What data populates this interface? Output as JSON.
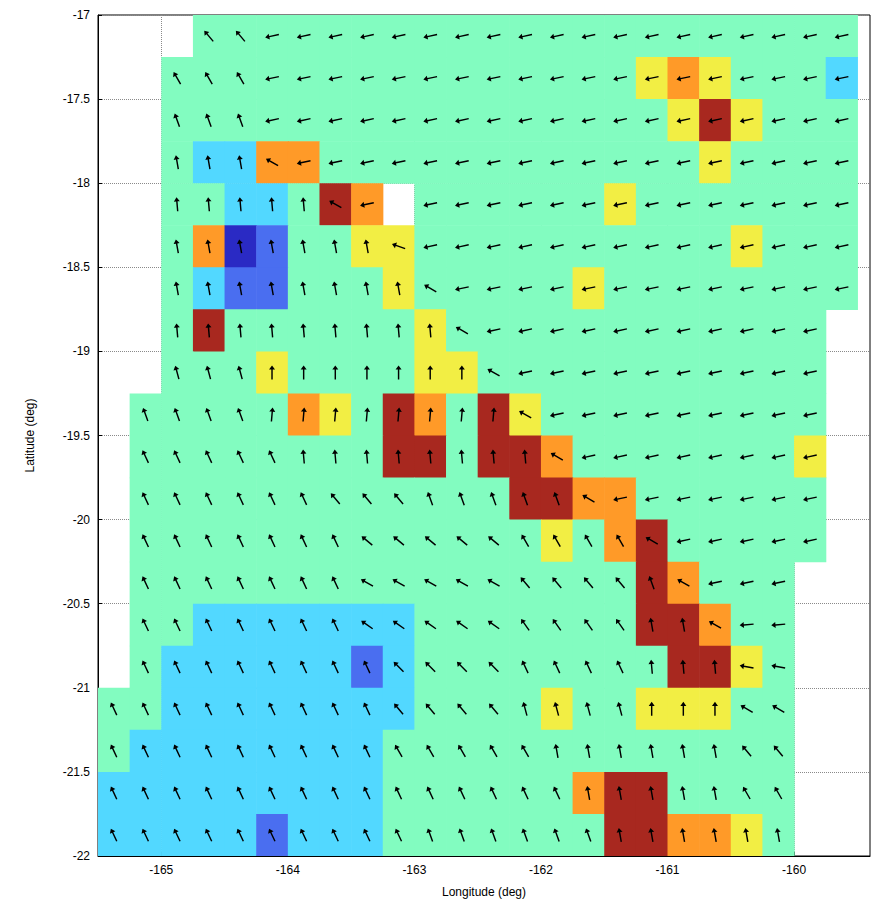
{
  "chart_data": {
    "type": "heatmap",
    "xlabel": "Longitude (deg)",
    "ylabel": "Latitude (deg)",
    "xlim": [
      -165.5,
      -159.4
    ],
    "ylim": [
      -22,
      -17
    ],
    "xticks": [
      -165,
      -164,
      -163,
      -162,
      -161,
      -160
    ],
    "yticks": [
      -22,
      -21.5,
      -21,
      -20.5,
      -20,
      -19.5,
      -19,
      -18.5,
      -18,
      -17.5,
      -17
    ],
    "grid": true,
    "lon": [
      -165.375,
      -165.125,
      -164.875,
      -164.625,
      -164.375,
      -164.125,
      -163.875,
      -163.625,
      -163.375,
      -163.125,
      -162.875,
      -162.625,
      -162.375,
      -162.125,
      -161.875,
      -161.625,
      -161.375,
      -161.125,
      -160.875,
      -160.625,
      -160.375,
      -160.125,
      -159.875,
      -159.625
    ],
    "lat": [
      -17.125,
      -17.375,
      -17.625,
      -17.875,
      -18.125,
      -18.375,
      -18.625,
      -18.875,
      -19.125,
      -19.375,
      -19.625,
      -19.875,
      -20.125,
      -20.375,
      -20.625,
      -20.875,
      -21.125,
      -21.375,
      -21.625,
      -21.875
    ],
    "color_range": [
      -3,
      3
    ],
    "cells": [
      [
        null,
        null,
        null,
        0,
        0,
        0,
        0,
        0,
        0,
        0,
        0,
        0,
        0,
        0,
        0,
        0,
        0,
        0,
        0,
        0,
        0,
        0,
        0,
        0
      ],
      [
        null,
        null,
        0,
        0,
        0,
        0,
        0,
        0,
        0,
        0,
        0,
        0,
        0,
        0,
        0,
        0,
        0,
        1,
        2,
        1,
        0,
        0,
        0,
        -1
      ],
      [
        null,
        null,
        0,
        0,
        0,
        0,
        0,
        0,
        0,
        0,
        0,
        0,
        0,
        0,
        0,
        0,
        0,
        0,
        1,
        3,
        1,
        0,
        0,
        0
      ],
      [
        null,
        null,
        0,
        -1,
        -1,
        2,
        2,
        0,
        0,
        0,
        0,
        0,
        0,
        0,
        0,
        0,
        0,
        0,
        0,
        1,
        0,
        0,
        0,
        0
      ],
      [
        null,
        null,
        0,
        0,
        -1,
        -1,
        0,
        3,
        2,
        null,
        0,
        0,
        0,
        0,
        0,
        0,
        1,
        0,
        0,
        0,
        0,
        0,
        0,
        0
      ],
      [
        null,
        null,
        0,
        2,
        -3,
        -2,
        0,
        0,
        1,
        1,
        0,
        0,
        0,
        0,
        0,
        0,
        0,
        0,
        0,
        0,
        1,
        0,
        0,
        0
      ],
      [
        null,
        null,
        0,
        -1,
        -2,
        -2,
        0,
        0,
        0,
        1,
        0,
        0,
        0,
        0,
        0,
        1,
        0,
        0,
        0,
        0,
        0,
        0,
        0,
        0
      ],
      [
        null,
        null,
        0,
        3,
        0,
        0,
        0,
        0,
        0,
        0,
        1,
        0,
        0,
        0,
        0,
        0,
        0,
        0,
        0,
        0,
        0,
        0,
        0,
        null
      ],
      [
        null,
        null,
        0,
        0,
        0,
        1,
        0,
        0,
        0,
        0,
        1,
        1,
        0,
        0,
        0,
        0,
        0,
        0,
        0,
        0,
        0,
        0,
        0,
        null
      ],
      [
        null,
        0,
        0,
        0,
        0,
        0,
        2,
        1,
        0,
        3,
        2,
        0,
        3,
        1,
        0,
        0,
        0,
        0,
        0,
        0,
        0,
        0,
        0,
        null
      ],
      [
        null,
        0,
        0,
        0,
        0,
        0,
        0,
        0,
        0,
        3,
        3,
        0,
        3,
        3,
        2,
        0,
        0,
        0,
        0,
        0,
        0,
        0,
        1,
        null
      ],
      [
        null,
        0,
        0,
        0,
        0,
        0,
        0,
        0,
        0,
        0,
        0,
        0,
        0,
        3,
        3,
        2,
        2,
        0,
        0,
        0,
        0,
        0,
        0,
        null
      ],
      [
        null,
        0,
        0,
        0,
        0,
        0,
        0,
        0,
        0,
        0,
        0,
        0,
        0,
        0,
        1,
        0,
        2,
        3,
        0,
        0,
        0,
        0,
        0,
        null
      ],
      [
        null,
        0,
        0,
        0,
        0,
        0,
        0,
        0,
        0,
        0,
        0,
        0,
        0,
        0,
        0,
        0,
        0,
        3,
        2,
        0,
        0,
        0,
        null,
        null
      ],
      [
        null,
        0,
        0,
        -1,
        -1,
        -1,
        -1,
        -1,
        -1,
        -1,
        0,
        0,
        0,
        0,
        0,
        0,
        0,
        3,
        3,
        2,
        0,
        0,
        null,
        null
      ],
      [
        null,
        0,
        -1,
        -1,
        -1,
        -1,
        -1,
        -1,
        -2,
        -1,
        0,
        0,
        0,
        0,
        0,
        0,
        0,
        0,
        3,
        3,
        1,
        0,
        null,
        null
      ],
      [
        0,
        0,
        -1,
        -1,
        -1,
        -1,
        -1,
        -1,
        -1,
        -1,
        0,
        0,
        0,
        0,
        1,
        0,
        0,
        1,
        1,
        1,
        0,
        0,
        null,
        null
      ],
      [
        0,
        -1,
        -1,
        -1,
        -1,
        -1,
        -1,
        -1,
        -1,
        0,
        0,
        0,
        0,
        0,
        0,
        0,
        0,
        0,
        0,
        0,
        0,
        0,
        null,
        null
      ],
      [
        -1,
        -1,
        -1,
        -1,
        -1,
        -1,
        -1,
        -1,
        -1,
        0,
        0,
        0,
        0,
        0,
        0,
        2,
        3,
        3,
        0,
        0,
        0,
        0,
        null,
        null
      ],
      [
        -1,
        -1,
        -1,
        -1,
        -1,
        -2,
        -1,
        -1,
        -1,
        0,
        0,
        0,
        0,
        0,
        0,
        0,
        3,
        3,
        2,
        2,
        1,
        0,
        null,
        null
      ]
    ],
    "arrow_direction": [
      [
        null,
        null,
        null,
        320,
        320,
        258,
        258,
        258,
        258,
        258,
        258,
        258,
        258,
        258,
        258,
        258,
        258,
        258,
        258,
        258,
        258,
        258,
        258,
        258
      ],
      [
        null,
        null,
        330,
        330,
        330,
        258,
        258,
        258,
        258,
        258,
        258,
        258,
        258,
        258,
        258,
        258,
        258,
        258,
        258,
        258,
        258,
        258,
        258,
        258
      ],
      [
        null,
        null,
        340,
        340,
        340,
        258,
        258,
        258,
        258,
        258,
        258,
        258,
        258,
        258,
        258,
        258,
        258,
        258,
        258,
        258,
        258,
        258,
        258,
        258
      ],
      [
        null,
        null,
        350,
        350,
        350,
        300,
        258,
        258,
        258,
        258,
        258,
        258,
        258,
        258,
        258,
        258,
        258,
        258,
        258,
        258,
        258,
        258,
        258,
        258
      ],
      [
        null,
        null,
        355,
        355,
        355,
        355,
        355,
        300,
        258,
        null,
        258,
        258,
        258,
        258,
        258,
        258,
        258,
        258,
        258,
        258,
        258,
        258,
        258,
        258
      ],
      [
        null,
        null,
        350,
        350,
        350,
        350,
        350,
        350,
        350,
        290,
        258,
        258,
        258,
        258,
        258,
        258,
        258,
        258,
        258,
        258,
        258,
        258,
        258,
        258
      ],
      [
        null,
        null,
        350,
        350,
        350,
        350,
        350,
        350,
        350,
        350,
        300,
        258,
        258,
        258,
        258,
        258,
        258,
        258,
        258,
        258,
        258,
        258,
        258,
        258
      ],
      [
        null,
        null,
        355,
        355,
        355,
        355,
        355,
        355,
        355,
        355,
        355,
        300,
        258,
        258,
        258,
        258,
        258,
        258,
        258,
        258,
        258,
        258,
        258,
        null
      ],
      [
        null,
        null,
        345,
        345,
        345,
        0,
        0,
        0,
        0,
        0,
        0,
        0,
        300,
        258,
        258,
        258,
        258,
        258,
        258,
        258,
        258,
        258,
        258,
        null
      ],
      [
        null,
        340,
        340,
        340,
        340,
        5,
        5,
        5,
        5,
        5,
        5,
        5,
        5,
        300,
        258,
        258,
        258,
        258,
        258,
        258,
        258,
        258,
        258,
        null
      ],
      [
        null,
        335,
        335,
        335,
        335,
        335,
        355,
        355,
        355,
        355,
        355,
        355,
        355,
        355,
        300,
        258,
        258,
        258,
        258,
        258,
        258,
        258,
        258,
        null
      ],
      [
        null,
        335,
        335,
        335,
        335,
        335,
        335,
        320,
        320,
        320,
        340,
        340,
        340,
        340,
        340,
        300,
        258,
        258,
        258,
        258,
        258,
        258,
        258,
        null
      ],
      [
        null,
        335,
        335,
        335,
        335,
        335,
        335,
        335,
        310,
        310,
        310,
        310,
        310,
        330,
        330,
        330,
        330,
        300,
        258,
        258,
        258,
        258,
        258,
        null
      ],
      [
        null,
        335,
        335,
        335,
        335,
        335,
        335,
        335,
        300,
        300,
        300,
        300,
        300,
        320,
        320,
        320,
        320,
        340,
        300,
        258,
        258,
        258,
        null,
        null
      ],
      [
        null,
        335,
        335,
        335,
        335,
        335,
        335,
        335,
        305,
        305,
        305,
        305,
        305,
        325,
        325,
        325,
        325,
        350,
        350,
        300,
        265,
        265,
        null,
        null
      ],
      [
        null,
        335,
        335,
        335,
        335,
        335,
        335,
        335,
        335,
        315,
        315,
        315,
        315,
        335,
        335,
        335,
        335,
        355,
        355,
        355,
        280,
        280,
        null,
        null
      ],
      [
        335,
        335,
        335,
        335,
        335,
        335,
        335,
        335,
        335,
        320,
        320,
        320,
        320,
        345,
        345,
        345,
        345,
        0,
        0,
        0,
        300,
        300,
        null,
        null
      ],
      [
        335,
        335,
        335,
        335,
        335,
        335,
        335,
        335,
        335,
        330,
        330,
        330,
        330,
        330,
        350,
        350,
        350,
        350,
        350,
        350,
        320,
        320,
        null,
        null
      ],
      [
        335,
        335,
        335,
        335,
        335,
        335,
        335,
        335,
        335,
        335,
        335,
        335,
        335,
        335,
        335,
        350,
        350,
        350,
        350,
        350,
        330,
        330,
        null,
        null
      ],
      [
        335,
        335,
        335,
        335,
        335,
        335,
        335,
        335,
        335,
        335,
        340,
        340,
        340,
        340,
        340,
        340,
        350,
        350,
        350,
        350,
        350,
        350,
        null,
        null
      ]
    ]
  }
}
